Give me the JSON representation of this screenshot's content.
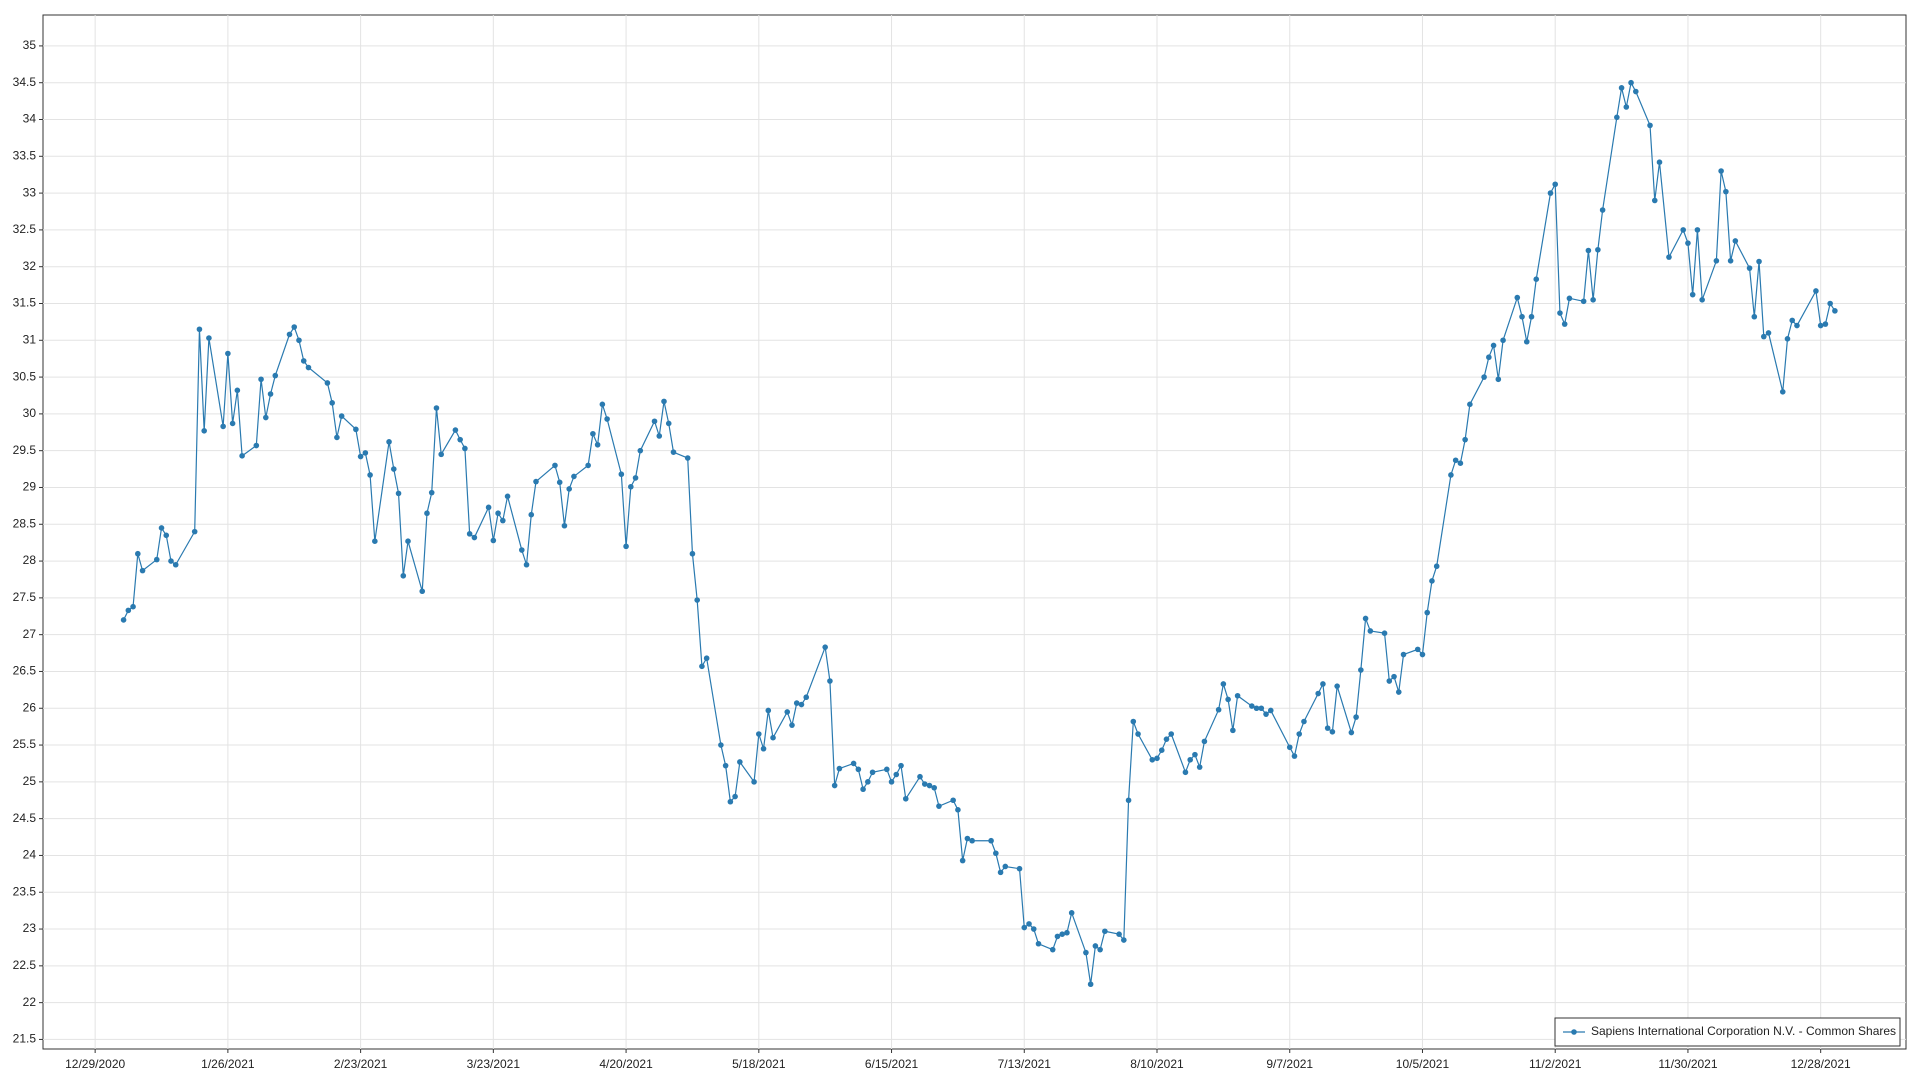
{
  "chart_data": {
    "type": "line",
    "grid": true,
    "legend_position": "lower right",
    "marker": "circle",
    "xlim": [
      "2020-12-18",
      "2022-01-15"
    ],
    "ylim": [
      21.37,
      35.42
    ],
    "xticks": [
      {
        "value": "2020-12-29",
        "label": "12/29/2020"
      },
      {
        "value": "2021-01-26",
        "label": "1/26/2021"
      },
      {
        "value": "2021-02-23",
        "label": "2/23/2021"
      },
      {
        "value": "2021-03-23",
        "label": "3/23/2021"
      },
      {
        "value": "2021-04-20",
        "label": "4/20/2021"
      },
      {
        "value": "2021-05-18",
        "label": "5/18/2021"
      },
      {
        "value": "2021-06-15",
        "label": "6/15/2021"
      },
      {
        "value": "2021-07-13",
        "label": "7/13/2021"
      },
      {
        "value": "2021-08-10",
        "label": "8/10/2021"
      },
      {
        "value": "2021-09-07",
        "label": "9/7/2021"
      },
      {
        "value": "2021-10-05",
        "label": "10/5/2021"
      },
      {
        "value": "2021-11-02",
        "label": "11/2/2021"
      },
      {
        "value": "2021-11-30",
        "label": "11/30/2021"
      },
      {
        "value": "2021-12-28",
        "label": "12/28/2021"
      }
    ],
    "yticks": [
      21.5,
      22,
      22.5,
      23,
      23.5,
      24,
      24.5,
      25,
      25.5,
      26,
      26.5,
      27,
      27.5,
      28,
      28.5,
      29,
      29.5,
      30,
      30.5,
      31,
      31.5,
      32,
      32.5,
      33,
      33.5,
      34,
      34.5,
      35
    ],
    "x": [
      "2021-01-04",
      "2021-01-05",
      "2021-01-06",
      "2021-01-07",
      "2021-01-08",
      "2021-01-11",
      "2021-01-12",
      "2021-01-13",
      "2021-01-14",
      "2021-01-15",
      "2021-01-19",
      "2021-01-20",
      "2021-01-21",
      "2021-01-22",
      "2021-01-25",
      "2021-01-26",
      "2021-01-27",
      "2021-01-28",
      "2021-01-29",
      "2021-02-01",
      "2021-02-02",
      "2021-02-03",
      "2021-02-04",
      "2021-02-05",
      "2021-02-08",
      "2021-02-09",
      "2021-02-10",
      "2021-02-11",
      "2021-02-12",
      "2021-02-16",
      "2021-02-17",
      "2021-02-18",
      "2021-02-19",
      "2021-02-22",
      "2021-02-23",
      "2021-02-24",
      "2021-02-25",
      "2021-02-26",
      "2021-03-01",
      "2021-03-02",
      "2021-03-03",
      "2021-03-04",
      "2021-03-05",
      "2021-03-08",
      "2021-03-09",
      "2021-03-10",
      "2021-03-11",
      "2021-03-12",
      "2021-03-15",
      "2021-03-16",
      "2021-03-17",
      "2021-03-18",
      "2021-03-19",
      "2021-03-22",
      "2021-03-23",
      "2021-03-24",
      "2021-03-25",
      "2021-03-26",
      "2021-03-29",
      "2021-03-30",
      "2021-03-31",
      "2021-04-01",
      "2021-04-05",
      "2021-04-06",
      "2021-04-07",
      "2021-04-08",
      "2021-04-09",
      "2021-04-12",
      "2021-04-13",
      "2021-04-14",
      "2021-04-15",
      "2021-04-16",
      "2021-04-19",
      "2021-04-20",
      "2021-04-21",
      "2021-04-22",
      "2021-04-23",
      "2021-04-26",
      "2021-04-27",
      "2021-04-28",
      "2021-04-29",
      "2021-04-30",
      "2021-05-03",
      "2021-05-04",
      "2021-05-05",
      "2021-05-06",
      "2021-05-07",
      "2021-05-10",
      "2021-05-11",
      "2021-05-12",
      "2021-05-13",
      "2021-05-14",
      "2021-05-17",
      "2021-05-18",
      "2021-05-19",
      "2021-05-20",
      "2021-05-21",
      "2021-05-24",
      "2021-05-25",
      "2021-05-26",
      "2021-05-27",
      "2021-05-28",
      "2021-06-01",
      "2021-06-02",
      "2021-06-03",
      "2021-06-04",
      "2021-06-07",
      "2021-06-08",
      "2021-06-09",
      "2021-06-10",
      "2021-06-11",
      "2021-06-14",
      "2021-06-15",
      "2021-06-16",
      "2021-06-17",
      "2021-06-18",
      "2021-06-21",
      "2021-06-22",
      "2021-06-23",
      "2021-06-24",
      "2021-06-25",
      "2021-06-28",
      "2021-06-29",
      "2021-06-30",
      "2021-07-01",
      "2021-07-02",
      "2021-07-06",
      "2021-07-07",
      "2021-07-08",
      "2021-07-09",
      "2021-07-12",
      "2021-07-13",
      "2021-07-14",
      "2021-07-15",
      "2021-07-16",
      "2021-07-19",
      "2021-07-20",
      "2021-07-21",
      "2021-07-22",
      "2021-07-23",
      "2021-07-26",
      "2021-07-27",
      "2021-07-28",
      "2021-07-29",
      "2021-07-30",
      "2021-08-02",
      "2021-08-03",
      "2021-08-04",
      "2021-08-05",
      "2021-08-06",
      "2021-08-09",
      "2021-08-10",
      "2021-08-11",
      "2021-08-12",
      "2021-08-13",
      "2021-08-16",
      "2021-08-17",
      "2021-08-18",
      "2021-08-19",
      "2021-08-20",
      "2021-08-23",
      "2021-08-24",
      "2021-08-25",
      "2021-08-26",
      "2021-08-27",
      "2021-08-30",
      "2021-08-31",
      "2021-09-01",
      "2021-09-02",
      "2021-09-03",
      "2021-09-07",
      "2021-09-08",
      "2021-09-09",
      "2021-09-10",
      "2021-09-13",
      "2021-09-14",
      "2021-09-15",
      "2021-09-16",
      "2021-09-17",
      "2021-09-20",
      "2021-09-21",
      "2021-09-22",
      "2021-09-23",
      "2021-09-24",
      "2021-09-27",
      "2021-09-28",
      "2021-09-29",
      "2021-09-30",
      "2021-10-01",
      "2021-10-04",
      "2021-10-05",
      "2021-10-06",
      "2021-10-07",
      "2021-10-08",
      "2021-10-11",
      "2021-10-12",
      "2021-10-13",
      "2021-10-14",
      "2021-10-15",
      "2021-10-18",
      "2021-10-19",
      "2021-10-20",
      "2021-10-21",
      "2021-10-22",
      "2021-10-25",
      "2021-10-26",
      "2021-10-27",
      "2021-10-28",
      "2021-10-29",
      "2021-11-01",
      "2021-11-02",
      "2021-11-03",
      "2021-11-04",
      "2021-11-05",
      "2021-11-08",
      "2021-11-09",
      "2021-11-10",
      "2021-11-11",
      "2021-11-12",
      "2021-11-15",
      "2021-11-16",
      "2021-11-17",
      "2021-11-18",
      "2021-11-19",
      "2021-11-22",
      "2021-11-23",
      "2021-11-24",
      "2021-11-26",
      "2021-11-29",
      "2021-11-30",
      "2021-12-01",
      "2021-12-02",
      "2021-12-03",
      "2021-12-06",
      "2021-12-07",
      "2021-12-08",
      "2021-12-09",
      "2021-12-10",
      "2021-12-13",
      "2021-12-14",
      "2021-12-15",
      "2021-12-16",
      "2021-12-17",
      "2021-12-20",
      "2021-12-21",
      "2021-12-22",
      "2021-12-23",
      "2021-12-27",
      "2021-12-28",
      "2021-12-29",
      "2021-12-30",
      "2021-12-31"
    ],
    "series": [
      {
        "name": "Sapiens International Corporation N.V. - Common Shares",
        "color": "#2a7ab0",
        "values": [
          27.2,
          27.33,
          27.38,
          28.1,
          27.87,
          28.02,
          28.45,
          28.35,
          28.0,
          27.95,
          28.4,
          31.15,
          29.77,
          31.03,
          29.83,
          30.82,
          29.87,
          30.32,
          29.43,
          29.57,
          30.47,
          29.95,
          30.27,
          30.52,
          31.08,
          31.18,
          31.0,
          30.72,
          30.63,
          30.42,
          30.15,
          29.68,
          29.97,
          29.79,
          29.42,
          29.47,
          29.17,
          28.27,
          29.62,
          29.25,
          28.92,
          27.8,
          28.27,
          27.59,
          28.65,
          28.93,
          30.08,
          29.45,
          29.78,
          29.65,
          29.53,
          28.37,
          28.32,
          28.73,
          28.28,
          28.65,
          28.55,
          28.88,
          28.15,
          27.95,
          28.63,
          29.08,
          29.3,
          29.07,
          28.48,
          28.98,
          29.15,
          29.3,
          29.73,
          29.58,
          30.13,
          29.93,
          29.18,
          28.2,
          29.01,
          29.13,
          29.5,
          29.9,
          29.7,
          30.17,
          29.87,
          29.48,
          29.4,
          28.1,
          27.47,
          26.57,
          26.68,
          25.5,
          25.22,
          24.73,
          24.8,
          25.27,
          25.0,
          25.65,
          25.45,
          25.97,
          25.6,
          25.95,
          25.77,
          26.07,
          26.05,
          26.15,
          26.83,
          26.37,
          24.95,
          25.18,
          25.25,
          25.17,
          24.9,
          25.0,
          25.13,
          25.17,
          25.0,
          25.1,
          25.22,
          24.77,
          25.07,
          24.97,
          24.95,
          24.92,
          24.67,
          24.75,
          24.62,
          23.93,
          24.23,
          24.2,
          24.2,
          24.03,
          23.77,
          23.85,
          23.82,
          23.02,
          23.07,
          23.0,
          22.8,
          22.72,
          22.9,
          22.93,
          22.95,
          23.22,
          22.68,
          22.25,
          22.77,
          22.72,
          22.97,
          22.93,
          22.85,
          24.75,
          25.82,
          25.65,
          25.3,
          25.32,
          25.43,
          25.58,
          25.65,
          25.13,
          25.3,
          25.37,
          25.2,
          25.55,
          25.98,
          26.33,
          26.12,
          25.7,
          26.17,
          26.03,
          26.0,
          26.0,
          25.92,
          25.97,
          25.47,
          25.35,
          25.65,
          25.82,
          26.2,
          26.33,
          25.73,
          25.68,
          26.3,
          25.67,
          25.88,
          26.52,
          27.22,
          27.05,
          27.02,
          26.37,
          26.43,
          26.22,
          26.73,
          26.8,
          26.73,
          27.3,
          27.73,
          27.93,
          29.17,
          29.37,
          29.33,
          29.65,
          30.13,
          30.5,
          30.77,
          30.93,
          30.47,
          31.0,
          31.58,
          31.32,
          30.98,
          31.32,
          31.83,
          33.0,
          33.12,
          31.37,
          31.22,
          31.57,
          31.53,
          32.22,
          31.55,
          32.23,
          32.77,
          34.03,
          34.43,
          34.17,
          34.5,
          34.38,
          33.92,
          32.9,
          33.42,
          32.13,
          32.5,
          32.32,
          31.62,
          32.5,
          31.55,
          32.08,
          33.3,
          33.02,
          32.08,
          32.35,
          31.98,
          31.32,
          32.07,
          31.05,
          31.1,
          30.3,
          31.02,
          31.27,
          31.2,
          31.67,
          31.2,
          31.22,
          31.5,
          31.4
        ]
      }
    ]
  }
}
